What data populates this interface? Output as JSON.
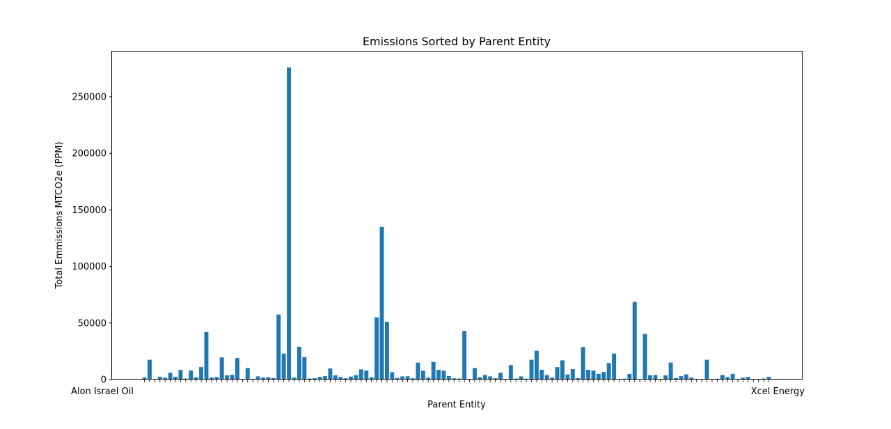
{
  "chart_data": {
    "type": "bar",
    "title": "Emissions Sorted by Parent Entity",
    "xlabel": "Parent Entity",
    "ylabel": "Total Emmissions MTCO2e (PPM)",
    "ylim": [
      0,
      290000
    ],
    "yticks": [
      0,
      50000,
      100000,
      150000,
      200000,
      250000
    ],
    "ytick_labels": [
      "0",
      "50000",
      "100000",
      "150000",
      "200000",
      "250000"
    ],
    "grid": false,
    "legend": "none",
    "bar_color": "#1f77b4",
    "left_tick_label": "Alon Israel Oil",
    "right_tick_label": "Xcel Energy",
    "values": [
      1900,
      17500,
      300,
      2500,
      1700,
      6000,
      2500,
      8500,
      900,
      8000,
      2000,
      11000,
      42000,
      1800,
      2300,
      19500,
      3700,
      4200,
      19000,
      400,
      10200,
      700,
      2800,
      1700,
      2000,
      1400,
      57500,
      23000,
      276000,
      1800,
      29000,
      19800,
      900,
      1200,
      2400,
      3000,
      9800,
      3700,
      2200,
      1100,
      2600,
      3900,
      9000,
      8000,
      2000,
      55000,
      135000,
      51000,
      6500,
      1500,
      2800,
      2900,
      1100,
      15000,
      7800,
      1700,
      15600,
      8600,
      7900,
      3100,
      1100,
      900,
      43000,
      600,
      10200,
      2100,
      4000,
      2800,
      1200,
      6000,
      500,
      12800,
      900,
      2800,
      800,
      17500,
      25500,
      8600,
      4000,
      1700,
      11000,
      17000,
      4500,
      9200,
      1200,
      28800,
      8600,
      8000,
      5000,
      6700,
      14600,
      23000,
      400,
      800,
      4900,
      68700,
      400,
      40400,
      3800,
      4000,
      200,
      3700,
      15000,
      1300,
      3000,
      4600,
      1800,
      500,
      500,
      17500,
      600,
      800,
      4000,
      2200,
      5000,
      400,
      1700,
      2300,
      300,
      600,
      900,
      2400
    ]
  }
}
